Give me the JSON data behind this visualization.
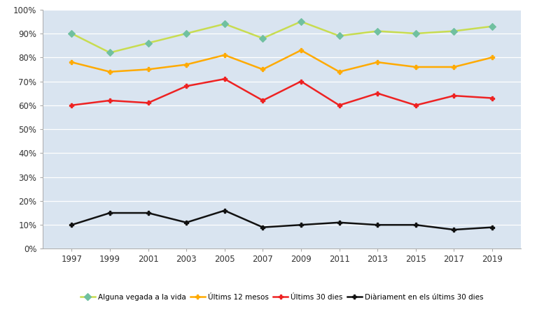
{
  "years": [
    1997,
    1999,
    2001,
    2003,
    2005,
    2007,
    2009,
    2011,
    2013,
    2015,
    2017,
    2019
  ],
  "alguna_vegada": [
    90,
    82,
    86,
    90,
    94,
    88,
    95,
    89,
    91,
    90,
    91,
    93
  ],
  "ultims_12_mesos": [
    78,
    74,
    75,
    77,
    81,
    75,
    83,
    74,
    78,
    76,
    76,
    80
  ],
  "ultims_30_dies": [
    60,
    62,
    61,
    68,
    71,
    62,
    70,
    60,
    65,
    60,
    64,
    63
  ],
  "diriament": [
    10,
    15,
    15,
    11,
    16,
    9,
    10,
    11,
    10,
    10,
    8,
    9
  ],
  "color_alguna": "#c8dc50",
  "color_alguna_marker": "#70c0a0",
  "color_12mesos": "#ffaa00",
  "color_30dies": "#ee2222",
  "color_diari": "#111111",
  "bg_color": "#d9e4f0",
  "ylim": [
    0,
    100
  ],
  "yticks": [
    0,
    10,
    20,
    30,
    40,
    50,
    60,
    70,
    80,
    90,
    100
  ],
  "ytick_labels": [
    "0%",
    "10%",
    "20%",
    "30%",
    "40%",
    "50%",
    "60%",
    "70%",
    "80%",
    "90%",
    "100%"
  ],
  "legend_labels": [
    "Alguna vegada a la vida",
    "Últims 12 mesos",
    "Últims 30 dies",
    "Diàriament en els últims 30 dies"
  ]
}
